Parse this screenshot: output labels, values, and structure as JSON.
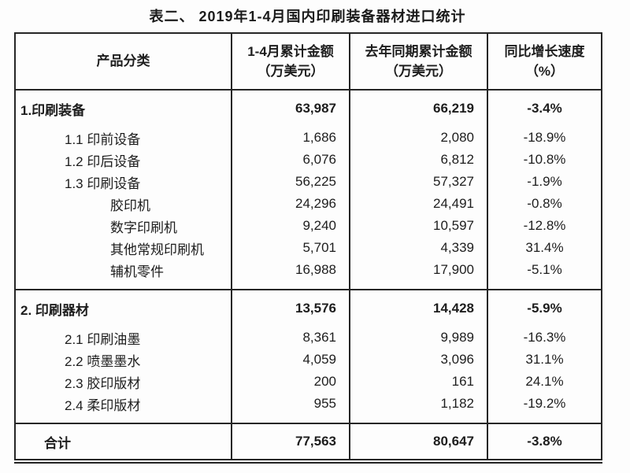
{
  "page": {
    "title": "表二、 2019年1-4月国内印刷装备器材进口统计"
  },
  "table": {
    "header": {
      "col_category": "产品分类",
      "col_current_line1": "1-4月累计金额",
      "col_current_line2": "（万美元）",
      "col_previous_line1": "去年同期累计金额",
      "col_previous_line2": "（万美元）",
      "col_growth_line1": "同比增长速度",
      "col_growth_line2": "（%）"
    },
    "rows": [
      {
        "category": "1.印刷装备",
        "current": "63,987",
        "previous": "66,219",
        "growth": "-3.4%"
      },
      {
        "category": "1.1 印前设备",
        "current": "1,686",
        "previous": "2,080",
        "growth": "-18.9%"
      },
      {
        "category": "1.2 印后设备",
        "current": "6,076",
        "previous": "6,812",
        "growth": "-10.8%"
      },
      {
        "category": "1.3 印刷设备",
        "current": "56,225",
        "previous": "57,327",
        "growth": "-1.9%"
      },
      {
        "category": "胶印机",
        "current": "24,296",
        "previous": "24,491",
        "growth": "-0.8%"
      },
      {
        "category": "数字印刷机",
        "current": "9,240",
        "previous": "10,597",
        "growth": "-12.8%"
      },
      {
        "category": "其他常规印刷机",
        "current": "5,701",
        "previous": "4,339",
        "growth": "31.4%"
      },
      {
        "category": "辅机零件",
        "current": "16,988",
        "previous": "17,900",
        "growth": "-5.1%"
      },
      {
        "category": "2. 印刷器材",
        "current": "13,576",
        "previous": "14,428",
        "growth": "-5.9%"
      },
      {
        "category": "2.1 印刷油墨",
        "current": "8,361",
        "previous": "9,989",
        "growth": "-16.3%"
      },
      {
        "category": "2.2 喷墨墨水",
        "current": "4,059",
        "previous": "3,096",
        "growth": "31.1%"
      },
      {
        "category": "2.3 胶印版材",
        "current": "200",
        "previous": "161",
        "growth": "24.1%"
      },
      {
        "category": "2.4 柔印版材",
        "current": "955",
        "previous": "1,182",
        "growth": "-19.2%"
      }
    ],
    "total": {
      "category": "合计",
      "current": "77,563",
      "previous": "80,647",
      "growth": "-3.8%"
    }
  }
}
